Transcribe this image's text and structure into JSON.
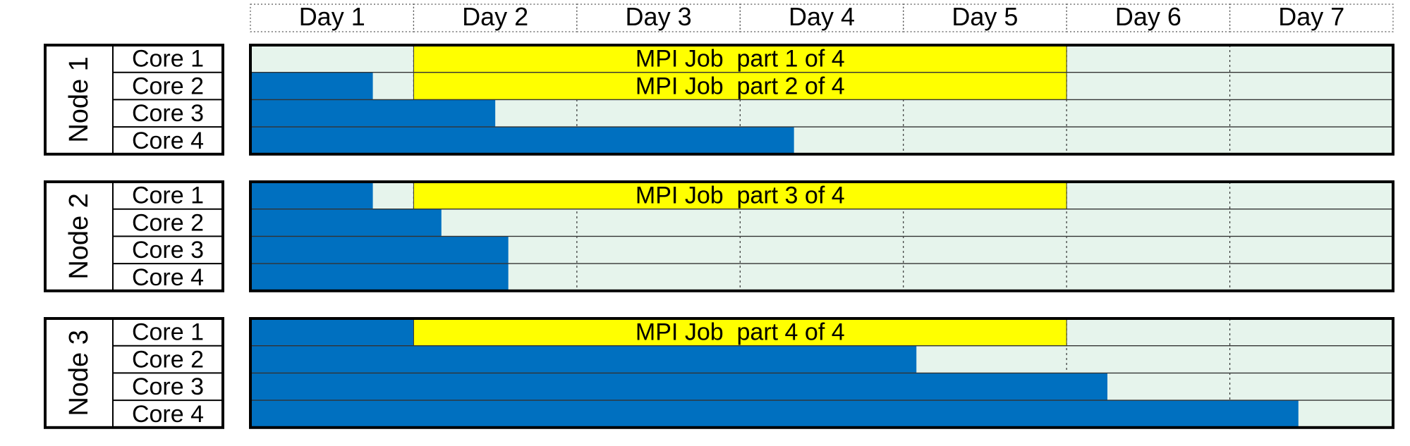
{
  "days": [
    "Day 1",
    "Day 2",
    "Day 3",
    "Day 4",
    "Day 5",
    "Day 6",
    "Day 7"
  ],
  "colors": {
    "idle": "#e6f4ec",
    "busy": "#0070c0",
    "mpi": "#ffff00",
    "border": "#000000"
  },
  "nodes": [
    {
      "label": "Node 1",
      "cores": [
        {
          "label": "Core 1",
          "busy_until_day": 0,
          "mpi": {
            "start_day": 1,
            "end_day": 5,
            "label": "MPI Job  part 1 of 4"
          }
        },
        {
          "label": "Core 2",
          "busy_until_day": 0.75,
          "mpi": {
            "start_day": 1,
            "end_day": 5,
            "label": "MPI Job  part 2 of 4"
          }
        },
        {
          "label": "Core 3",
          "busy_until_day": 1.5,
          "mpi": null
        },
        {
          "label": "Core 4",
          "busy_until_day": 3.33,
          "mpi": null
        }
      ]
    },
    {
      "label": "Node 2",
      "cores": [
        {
          "label": "Core 1",
          "busy_until_day": 0.75,
          "mpi": {
            "start_day": 1,
            "end_day": 5,
            "label": "MPI Job  part 3 of 4"
          }
        },
        {
          "label": "Core 2",
          "busy_until_day": 1.17,
          "mpi": null
        },
        {
          "label": "Core 3",
          "busy_until_day": 1.58,
          "mpi": null
        },
        {
          "label": "Core 4",
          "busy_until_day": 1.58,
          "mpi": null
        }
      ]
    },
    {
      "label": "Node 3",
      "cores": [
        {
          "label": "Core 1",
          "busy_until_day": 1,
          "mpi": {
            "start_day": 1,
            "end_day": 5,
            "label": "MPI Job  part 4 of 4"
          }
        },
        {
          "label": "Core 2",
          "busy_until_day": 4.08,
          "mpi": null
        },
        {
          "label": "Core 3",
          "busy_until_day": 5.25,
          "mpi": null
        },
        {
          "label": "Core 4",
          "busy_until_day": 6.42,
          "mpi": null
        }
      ]
    }
  ]
}
